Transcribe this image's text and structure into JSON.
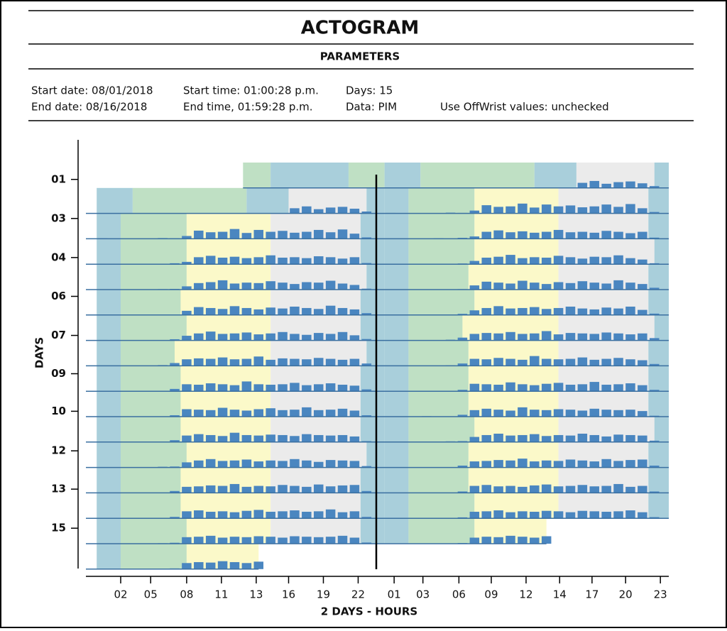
{
  "header": {
    "title": "ACTOGRAM",
    "subtitle": "PARAMETERS",
    "start_date": "Start date: 08/01/2018",
    "end_date": "End date: 08/16/2018",
    "start_time": "Start time: 01:00:28 p.m.",
    "end_time": "End time, 01:59:28 p.m.",
    "days": "Days: 15",
    "data": "Data: PIM",
    "offwrist": "Use OffWrist values: unchecked"
  },
  "chart_data": {
    "type": "actogram",
    "y_label": "DAYS",
    "x_label": "2 DAYS - HOURS",
    "xlim": [
      -0.9,
      47.7
    ],
    "ylim": [
      0,
      16.9
    ],
    "activity_color": "#4a86c0",
    "activity_max": 100,
    "xticks": [
      {
        "value": 2.0,
        "label": "02"
      },
      {
        "value": 4.5,
        "label": "05"
      },
      {
        "value": 7.5,
        "label": "08"
      },
      {
        "value": 10.4,
        "label": "11"
      },
      {
        "value": 13.3,
        "label": "13"
      },
      {
        "value": 16.0,
        "label": "16"
      },
      {
        "value": 18.9,
        "label": "19"
      },
      {
        "value": 21.8,
        "label": "22"
      },
      {
        "value": 24.8,
        "label": "01"
      },
      {
        "value": 27.2,
        "label": "03"
      },
      {
        "value": 30.2,
        "label": "06"
      },
      {
        "value": 32.9,
        "label": "09"
      },
      {
        "value": 35.8,
        "label": "12"
      },
      {
        "value": 38.6,
        "label": "14"
      },
      {
        "value": 41.3,
        "label": "17"
      },
      {
        "value": 44.1,
        "label": "20"
      },
      {
        "value": 47.0,
        "label": "23"
      }
    ],
    "yticks": [
      {
        "value": 1.56,
        "label": "01"
      },
      {
        "value": 3.1,
        "label": "03"
      },
      {
        "value": 4.64,
        "label": "04"
      },
      {
        "value": 6.17,
        "label": "06"
      },
      {
        "value": 7.71,
        "label": "07"
      },
      {
        "value": 9.22,
        "label": "09"
      },
      {
        "value": 10.7,
        "label": "10"
      },
      {
        "value": 12.26,
        "label": "12"
      },
      {
        "value": 13.77,
        "label": "13"
      },
      {
        "value": 15.31,
        "label": "15"
      }
    ],
    "days": [
      {
        "segments": [
          [
            12.2,
            14.5,
            "#bfe0c4"
          ],
          [
            14.5,
            21,
            "#a9cfdb"
          ],
          [
            21,
            24,
            "#bfe0c4"
          ]
        ],
        "activity": [
          null,
          null,
          null,
          null,
          null,
          null,
          null,
          null,
          null,
          null,
          null,
          null,
          0,
          0,
          0,
          0,
          0,
          0,
          0,
          0,
          0,
          0,
          0,
          0
        ]
      },
      {
        "segments": [
          [
            0,
            3,
            "#a9cfdb"
          ],
          [
            3,
            12.5,
            "#bfe0c4"
          ],
          [
            12.5,
            16,
            "#a9cfdb"
          ],
          [
            16,
            22.5,
            "#ebebeb"
          ],
          [
            22.5,
            24,
            "#a9cfdb"
          ]
        ],
        "activity": [
          0,
          0,
          0,
          0,
          0,
          0,
          0,
          0,
          0,
          0,
          0,
          0,
          0,
          0,
          0,
          0,
          22,
          30,
          18,
          25,
          28,
          20,
          8,
          0
        ]
      },
      {
        "segments": [
          [
            0,
            2,
            "#a9cfdb"
          ],
          [
            2,
            7.5,
            "#bfe0c4"
          ],
          [
            7.5,
            14.5,
            "#fbf9c9"
          ],
          [
            14.5,
            22,
            "#ebebeb"
          ],
          [
            22,
            24,
            "#a9cfdb"
          ]
        ],
        "activity": [
          2,
          0,
          0,
          1,
          0,
          3,
          2,
          12,
          35,
          28,
          30,
          42,
          25,
          38,
          30,
          34,
          26,
          30,
          38,
          28,
          40,
          22,
          6,
          1
        ]
      },
      {
        "segments": [
          [
            0,
            2,
            "#a9cfdb"
          ],
          [
            2,
            7.5,
            "#bfe0c4"
          ],
          [
            7.5,
            14.5,
            "#fbf9c9"
          ],
          [
            14.5,
            22,
            "#ebebeb"
          ],
          [
            22,
            24,
            "#a9cfdb"
          ]
        ],
        "activity": [
          0,
          1,
          0,
          0,
          2,
          0,
          4,
          10,
          30,
          36,
          28,
          32,
          26,
          30,
          38,
          28,
          30,
          26,
          34,
          30,
          24,
          30,
          5,
          0
        ]
      },
      {
        "segments": [
          [
            0,
            2,
            "#a9cfdb"
          ],
          [
            2,
            7.5,
            "#bfe0c4"
          ],
          [
            7.5,
            14.5,
            "#fbf9c9"
          ],
          [
            14.5,
            22.5,
            "#ebebeb"
          ],
          [
            22.5,
            24,
            "#a9cfdb"
          ]
        ],
        "activity": [
          1,
          0,
          0,
          0,
          0,
          2,
          3,
          14,
          28,
          32,
          40,
          26,
          30,
          28,
          36,
          30,
          24,
          32,
          30,
          38,
          26,
          20,
          4,
          0
        ]
      },
      {
        "segments": [
          [
            0,
            2,
            "#a9cfdb"
          ],
          [
            2,
            7,
            "#bfe0c4"
          ],
          [
            7,
            14.5,
            "#fbf9c9"
          ],
          [
            14.5,
            22,
            "#ebebeb"
          ],
          [
            22,
            24,
            "#a9cfdb"
          ]
        ],
        "activity": [
          0,
          0,
          1,
          0,
          0,
          0,
          2,
          18,
          34,
          30,
          26,
          38,
          30,
          24,
          32,
          28,
          36,
          30,
          26,
          40,
          30,
          24,
          8,
          0
        ]
      },
      {
        "segments": [
          [
            0,
            2,
            "#a9cfdb"
          ],
          [
            2,
            7.5,
            "#bfe0c4"
          ],
          [
            7.5,
            14.5,
            "#fbf9c9"
          ],
          [
            14.5,
            22,
            "#ebebeb"
          ],
          [
            22,
            24,
            "#a9cfdb"
          ]
        ],
        "activity": [
          2,
          0,
          0,
          0,
          1,
          0,
          5,
          20,
          30,
          38,
          28,
          30,
          34,
          26,
          30,
          36,
          28,
          24,
          32,
          28,
          36,
          22,
          6,
          1
        ]
      },
      {
        "segments": [
          [
            0,
            2,
            "#a9cfdb"
          ],
          [
            2,
            6.5,
            "#bfe0c4"
          ],
          [
            6.5,
            14.5,
            "#fbf9c9"
          ],
          [
            14.5,
            22.5,
            "#ebebeb"
          ],
          [
            22.5,
            24,
            "#a9cfdb"
          ]
        ],
        "activity": [
          0,
          0,
          0,
          1,
          0,
          3,
          12,
          28,
          32,
          30,
          36,
          28,
          30,
          40,
          26,
          32,
          30,
          28,
          34,
          30,
          26,
          30,
          10,
          0
        ]
      },
      {
        "segments": [
          [
            0,
            2,
            "#a9cfdb"
          ],
          [
            2,
            7,
            "#bfe0c4"
          ],
          [
            7,
            14.5,
            "#fbf9c9"
          ],
          [
            14.5,
            22,
            "#ebebeb"
          ],
          [
            22,
            24,
            "#a9cfdb"
          ]
        ],
        "activity": [
          1,
          0,
          0,
          0,
          0,
          2,
          10,
          30,
          28,
          34,
          30,
          26,
          42,
          30,
          28,
          30,
          36,
          26,
          30,
          34,
          28,
          24,
          8,
          0
        ]
      },
      {
        "segments": [
          [
            0,
            2,
            "#a9cfdb"
          ],
          [
            2,
            7,
            "#bfe0c4"
          ],
          [
            7,
            14.5,
            "#fbf9c9"
          ],
          [
            14.5,
            22,
            "#ebebeb"
          ],
          [
            22,
            24,
            "#a9cfdb"
          ]
        ],
        "activity": [
          0,
          1,
          0,
          0,
          0,
          0,
          6,
          32,
          30,
          28,
          38,
          30,
          26,
          32,
          36,
          28,
          30,
          40,
          28,
          30,
          34,
          26,
          6,
          0
        ]
      },
      {
        "segments": [
          [
            0,
            2,
            "#a9cfdb"
          ],
          [
            2,
            7,
            "#bfe0c4"
          ],
          [
            7,
            14.5,
            "#fbf9c9"
          ],
          [
            14.5,
            22,
            "#ebebeb"
          ],
          [
            22,
            24,
            "#a9cfdb"
          ]
        ],
        "activity": [
          0,
          0,
          0,
          2,
          0,
          1,
          8,
          28,
          34,
          30,
          26,
          40,
          30,
          28,
          32,
          30,
          26,
          34,
          30,
          28,
          30,
          24,
          4,
          0
        ]
      },
      {
        "segments": [
          [
            0,
            2,
            "#a9cfdb"
          ],
          [
            2,
            7.5,
            "#bfe0c4"
          ],
          [
            7.5,
            14.5,
            "#fbf9c9"
          ],
          [
            14.5,
            22.5,
            "#ebebeb"
          ],
          [
            22.5,
            24,
            "#a9cfdb"
          ]
        ],
        "activity": [
          1,
          0,
          0,
          0,
          0,
          3,
          4,
          22,
          30,
          36,
          28,
          30,
          34,
          26,
          30,
          28,
          36,
          30,
          24,
          32,
          30,
          28,
          6,
          1
        ]
      },
      {
        "segments": [
          [
            0,
            2,
            "#a9cfdb"
          ],
          [
            2,
            7,
            "#bfe0c4"
          ],
          [
            7,
            14.5,
            "#fbf9c9"
          ],
          [
            14.5,
            22,
            "#ebebeb"
          ],
          [
            22,
            24,
            "#a9cfdb"
          ]
        ],
        "activity": [
          0,
          0,
          1,
          0,
          0,
          0,
          8,
          26,
          28,
          32,
          30,
          38,
          26,
          30,
          28,
          34,
          30,
          26,
          36,
          28,
          32,
          34,
          8,
          0
        ]
      },
      {
        "segments": [
          [
            0,
            2,
            "#a9cfdb"
          ],
          [
            2,
            7,
            "#bfe0c4"
          ],
          [
            7,
            14.5,
            "#fbf9c9"
          ],
          [
            14.5,
            22,
            "#ebebeb"
          ],
          [
            22,
            24,
            "#a9cfdb"
          ]
        ],
        "activity": [
          0,
          0,
          0,
          0,
          1,
          0,
          6,
          30,
          34,
          28,
          30,
          26,
          32,
          36,
          28,
          30,
          34,
          28,
          30,
          38,
          26,
          30,
          6,
          0
        ]
      },
      {
        "segments": [
          [
            0,
            2,
            "#a9cfdb"
          ],
          [
            2,
            7.5,
            "#bfe0c4"
          ],
          [
            7.5,
            14.5,
            "#fbf9c9"
          ],
          [
            14.5,
            22,
            "#ebebeb"
          ],
          [
            22,
            24,
            "#a9cfdb"
          ]
        ],
        "activity": [
          1,
          0,
          0,
          0,
          0,
          2,
          4,
          28,
          30,
          34,
          26,
          30,
          28,
          32,
          30,
          26,
          32,
          30,
          28,
          30,
          34,
          26,
          5,
          0
        ]
      },
      {
        "segments": [
          [
            0,
            2,
            "#a9cfdb"
          ],
          [
            2,
            7.5,
            "#bfe0c4"
          ],
          [
            7.5,
            13.5,
            "#fbf9c9"
          ]
        ],
        "activity": [
          0,
          0,
          0,
          1,
          0,
          0,
          3,
          26,
          30,
          28,
          34,
          30,
          26,
          32,
          null,
          null,
          null,
          null,
          null,
          null,
          null,
          null,
          null,
          null
        ]
      }
    ]
  }
}
